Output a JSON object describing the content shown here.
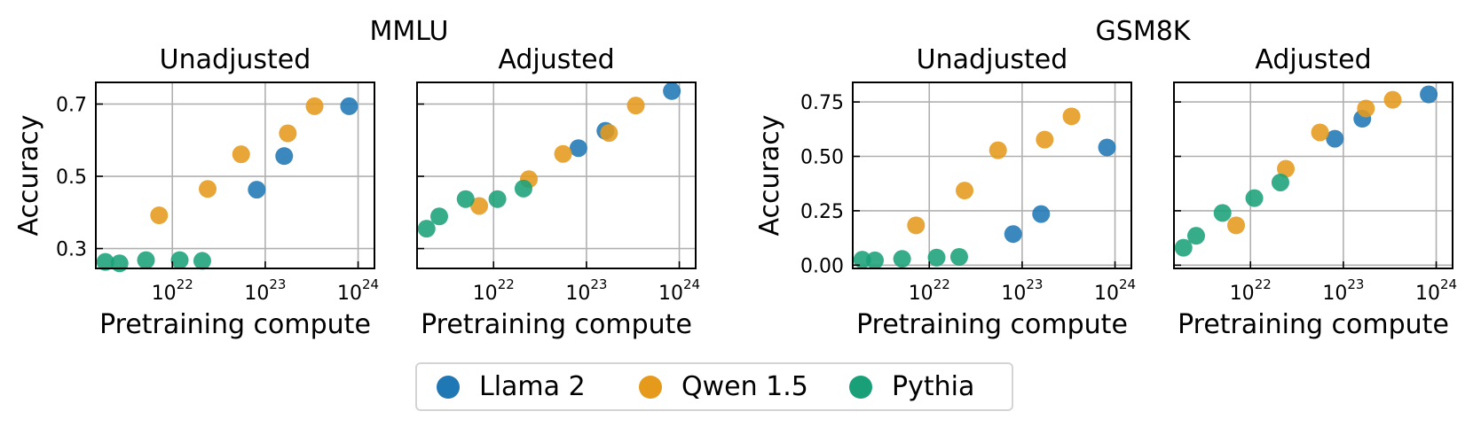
{
  "figure": {
    "group_titles": [
      "MMLU",
      "GSM8K"
    ]
  },
  "legend": {
    "items": [
      {
        "label": "Llama 2",
        "color": "#1f77b4"
      },
      {
        "label": "Qwen 1.5",
        "color": "#e69a1c"
      },
      {
        "label": "Pythia",
        "color": "#1aa079"
      }
    ]
  },
  "chart_data": [
    {
      "type": "scatter",
      "group": "MMLU",
      "title": "Unadjusted",
      "xlabel": "Pretraining compute",
      "ylabel": "Accuracy",
      "x_scale": "log",
      "xlim": [
        1.5e+21,
        1.5e+24
      ],
      "ylim": [
        0.245,
        0.76
      ],
      "xticks": [
        1e+22,
        1e+23,
        1e+24
      ],
      "xtick_labels": [
        [
          "10",
          "22"
        ],
        [
          "10",
          "23"
        ],
        [
          "10",
          "24"
        ]
      ],
      "yticks": [
        0.3,
        0.5,
        0.7
      ],
      "ytick_labels": [
        "0.3",
        "0.5",
        "0.7"
      ],
      "grid": true,
      "series": [
        {
          "name": "Llama 2",
          "color": "#1f77b4",
          "points": [
            [
              8.1e+22,
              0.463
            ],
            [
              1.6e+23,
              0.556
            ],
            [
              8e+23,
              0.694
            ]
          ]
        },
        {
          "name": "Qwen 1.5",
          "color": "#e69a1c",
          "points": [
            [
              7.2e+21,
              0.392
            ],
            [
              2.4e+22,
              0.465
            ],
            [
              5.5e+22,
              0.561
            ],
            [
              1.75e+23,
              0.619
            ],
            [
              3.4e+23,
              0.694
            ]
          ]
        },
        {
          "name": "Pythia",
          "color": "#1aa079",
          "points": [
            [
              1.9e+21,
              0.263
            ],
            [
              2.7e+21,
              0.259
            ],
            [
              5.2e+21,
              0.268
            ],
            [
              1.2e+22,
              0.268
            ],
            [
              2.1e+22,
              0.266
            ]
          ]
        }
      ]
    },
    {
      "type": "scatter",
      "group": "MMLU",
      "title": "Adjusted",
      "xlabel": "Pretraining compute",
      "ylabel": "",
      "x_scale": "log",
      "xlim": [
        1.5e+21,
        1.5e+24
      ],
      "ylim": [
        0.245,
        0.76
      ],
      "xticks": [
        1e+22,
        1e+23,
        1e+24
      ],
      "xtick_labels": [
        [
          "10",
          "22"
        ],
        [
          "10",
          "23"
        ],
        [
          "10",
          "24"
        ]
      ],
      "yticks": [
        0.3,
        0.5,
        0.7
      ],
      "ytick_labels": [],
      "grid": true,
      "series": [
        {
          "name": "Llama 2",
          "color": "#1f77b4",
          "points": [
            [
              8.2e+22,
              0.578
            ],
            [
              1.6e+23,
              0.626
            ],
            [
              8.3e+23,
              0.736
            ]
          ]
        },
        {
          "name": "Qwen 1.5",
          "color": "#e69a1c",
          "points": [
            [
              7e+21,
              0.418
            ],
            [
              2.4e+22,
              0.492
            ],
            [
              5.6e+22,
              0.562
            ],
            [
              1.75e+23,
              0.62
            ],
            [
              3.4e+23,
              0.696
            ]
          ]
        },
        {
          "name": "Pythia",
          "color": "#1aa079",
          "points": [
            [
              1.9e+21,
              0.355
            ],
            [
              2.6e+21,
              0.389
            ],
            [
              5e+21,
              0.437
            ],
            [
              1.1e+22,
              0.437
            ],
            [
              2.1e+22,
              0.466
            ]
          ]
        }
      ]
    },
    {
      "type": "scatter",
      "group": "GSM8K",
      "title": "Unadjusted",
      "xlabel": "Pretraining compute",
      "ylabel": "Accuracy",
      "x_scale": "log",
      "xlim": [
        1.5e+21,
        1.5e+24
      ],
      "ylim": [
        -0.015,
        0.84
      ],
      "xticks": [
        1e+22,
        1e+23,
        1e+24
      ],
      "xtick_labels": [
        [
          "10",
          "22"
        ],
        [
          "10",
          "23"
        ],
        [
          "10",
          "24"
        ]
      ],
      "yticks": [
        0.0,
        0.25,
        0.5,
        0.75
      ],
      "ytick_labels": [
        "0.00",
        "0.25",
        "0.50",
        "0.75"
      ],
      "grid": true,
      "series": [
        {
          "name": "Llama 2",
          "color": "#1f77b4",
          "points": [
            [
              8e+22,
              0.143
            ],
            [
              1.6e+23,
              0.235
            ],
            [
              8.2e+23,
              0.541
            ]
          ]
        },
        {
          "name": "Qwen 1.5",
          "color": "#e69a1c",
          "points": [
            [
              7.2e+21,
              0.183
            ],
            [
              2.4e+22,
              0.343
            ],
            [
              5.5e+22,
              0.528
            ],
            [
              1.75e+23,
              0.577
            ],
            [
              3.4e+23,
              0.684
            ]
          ]
        },
        {
          "name": "Pythia",
          "color": "#1aa079",
          "points": [
            [
              1.9e+21,
              0.025
            ],
            [
              2.6e+21,
              0.022
            ],
            [
              5.1e+21,
              0.029
            ],
            [
              1.2e+22,
              0.035
            ],
            [
              2.1e+22,
              0.038
            ]
          ]
        }
      ]
    },
    {
      "type": "scatter",
      "group": "GSM8K",
      "title": "Adjusted",
      "xlabel": "Pretraining compute",
      "ylabel": "",
      "x_scale": "log",
      "xlim": [
        1.5e+21,
        1.5e+24
      ],
      "ylim": [
        -0.015,
        0.84
      ],
      "xticks": [
        1e+22,
        1e+23,
        1e+24
      ],
      "xtick_labels": [
        [
          "10",
          "22"
        ],
        [
          "10",
          "23"
        ],
        [
          "10",
          "24"
        ]
      ],
      "yticks": [
        0.0,
        0.25,
        0.5,
        0.75
      ],
      "ytick_labels": [],
      "grid": true,
      "series": [
        {
          "name": "Llama 2",
          "color": "#1f77b4",
          "points": [
            [
              8.1e+22,
              0.581
            ],
            [
              1.6e+23,
              0.673
            ],
            [
              8.3e+23,
              0.785
            ]
          ]
        },
        {
          "name": "Qwen 1.5",
          "color": "#e69a1c",
          "points": [
            [
              7e+21,
              0.183
            ],
            [
              2.4e+22,
              0.443
            ],
            [
              5.6e+22,
              0.61
            ],
            [
              1.75e+23,
              0.72
            ],
            [
              3.4e+23,
              0.76
            ]
          ]
        },
        {
          "name": "Pythia",
          "color": "#1aa079",
          "points": [
            [
              1.9e+21,
              0.08
            ],
            [
              2.6e+21,
              0.135
            ],
            [
              5e+21,
              0.24
            ],
            [
              1.1e+22,
              0.308
            ],
            [
              2.1e+22,
              0.38
            ]
          ]
        }
      ]
    }
  ]
}
